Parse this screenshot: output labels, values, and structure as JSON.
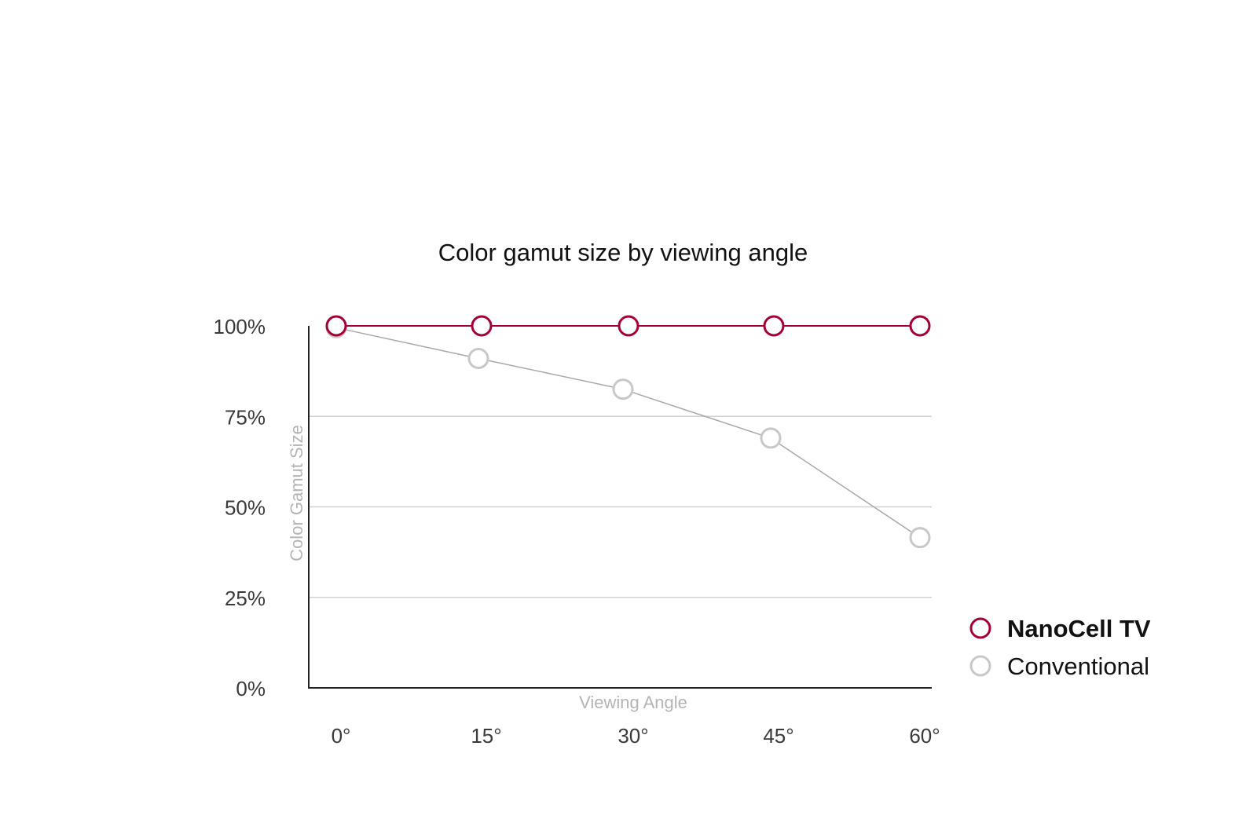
{
  "chart_data": {
    "type": "line",
    "title": "Color gamut size by viewing angle",
    "xlabel": "Viewing Angle",
    "ylabel": "Color Gamut Size",
    "categories": [
      "0°",
      "15°",
      "30°",
      "45°",
      "60°"
    ],
    "y_ticks": [
      "0%",
      "25%",
      "50%",
      "75%",
      "100%"
    ],
    "ylim": [
      0,
      100
    ],
    "grid": true,
    "legend_position": "right",
    "series": [
      {
        "name": "NanoCell TV",
        "values": [
          100,
          100,
          100,
          100,
          100
        ],
        "color": "#a50034"
      },
      {
        "name": "Conventional",
        "values": [
          99.5,
          91,
          82.5,
          69,
          41.5
        ],
        "color": "#c8c8c8"
      }
    ]
  }
}
